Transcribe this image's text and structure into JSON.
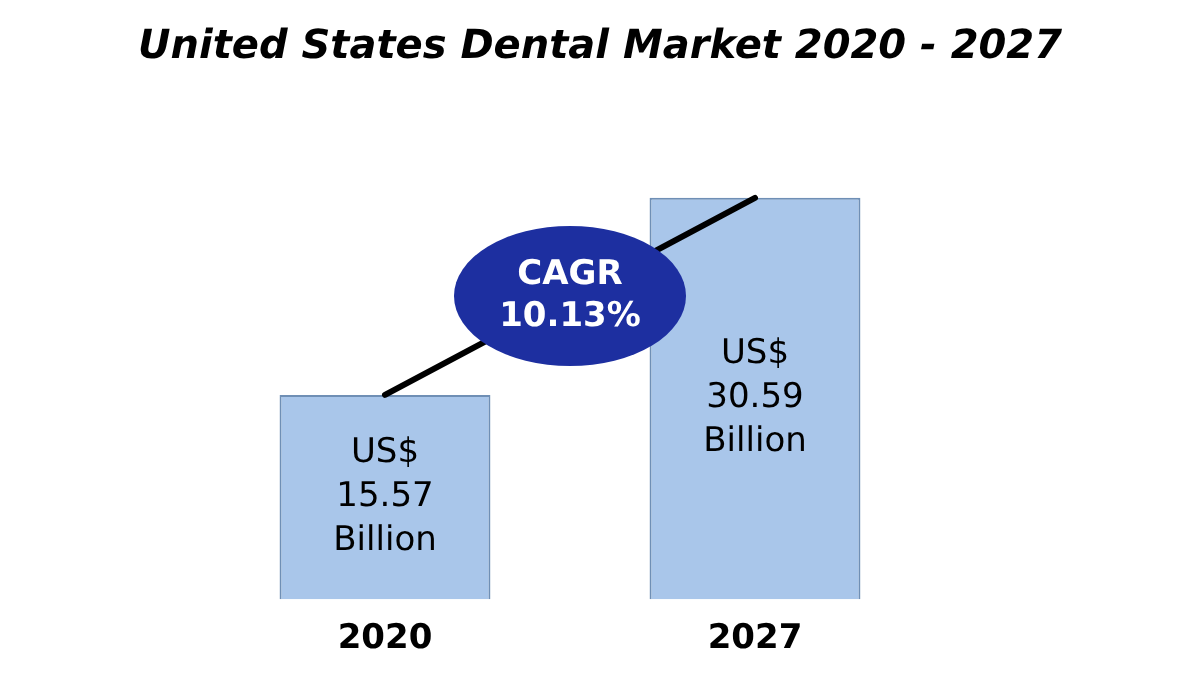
{
  "chart_data": {
    "type": "bar",
    "title": "United States Dental Market 2020 - 2027",
    "categories": [
      "2020",
      "2027"
    ],
    "series": [
      {
        "color": "#a9c6ea",
        "values": [
          15.57,
          30.59
        ],
        "value_labels": [
          "US$ 15.57 Billion",
          "US$ 30.59 Billion"
        ]
      },
      {
        "type": "line",
        "color": "#000000",
        "values": [
          15.57,
          30.59
        ],
        "marker": "none"
      }
    ],
    "annotations": [
      "CAGR 10.13%"
    ],
    "grid": false,
    "legend": false
  }
}
